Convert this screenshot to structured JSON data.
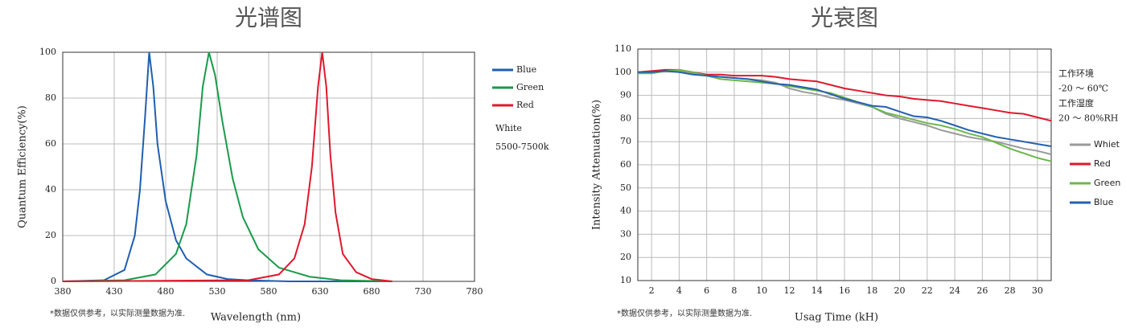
{
  "chart_data": [
    {
      "type": "line",
      "title": "光谱图",
      "x_label": "Wavelength  (nm)",
      "y_label": "Quantum  Efficiency(%)",
      "footnote": "*数据仅供参考，以实际测量数据为准.",
      "notes": [
        "White",
        "5500-7500k"
      ],
      "xlim": [
        380,
        780
      ],
      "xticks": [
        380,
        430,
        480,
        530,
        580,
        630,
        680,
        730,
        780
      ],
      "ylim": [
        0,
        100
      ],
      "yticks": [
        0,
        20,
        40,
        60,
        80,
        100
      ],
      "grid": true,
      "series": [
        {
          "name": "Blue",
          "color": "#1f5fb0",
          "x": [
            380,
            420,
            440,
            450,
            455,
            460,
            464,
            468,
            472,
            480,
            490,
            500,
            520,
            540,
            560,
            600,
            700
          ],
          "values": [
            0,
            0.5,
            5,
            20,
            40,
            72,
            100,
            85,
            60,
            35,
            18,
            10,
            3,
            1,
            0.5,
            0,
            0
          ]
        },
        {
          "name": "Green",
          "color": "#1a9a4a",
          "x": [
            380,
            440,
            470,
            490,
            500,
            510,
            516,
            522,
            528,
            535,
            545,
            555,
            570,
            590,
            620,
            650,
            700
          ],
          "values": [
            0,
            0.5,
            3,
            12,
            25,
            55,
            85,
            100,
            90,
            70,
            45,
            28,
            14,
            6,
            2,
            0.5,
            0
          ]
        },
        {
          "name": "Red",
          "color": "#e0182d",
          "x": [
            380,
            560,
            590,
            605,
            615,
            622,
            628,
            632,
            636,
            640,
            645,
            652,
            665,
            680,
            700
          ],
          "values": [
            0,
            0.5,
            3,
            10,
            25,
            50,
            85,
            100,
            85,
            55,
            30,
            12,
            4,
            1,
            0
          ]
        }
      ]
    },
    {
      "type": "line",
      "title": "光衰图",
      "x_label": "Usag Time (kH)",
      "y_label": "Intensity Attenuation(%)",
      "footnote": "*数据仅供参考，以实际测量数据为准.",
      "notes": [
        "工作环境",
        "-20 ～ 60℃",
        "工作湿度",
        "20 ～ 80%RH"
      ],
      "xlim": [
        1,
        31
      ],
      "xticks": [
        2,
        4,
        6,
        8,
        10,
        12,
        14,
        16,
        18,
        20,
        22,
        24,
        26,
        28,
        30
      ],
      "ylim": [
        10,
        110
      ],
      "yticks": [
        10,
        20,
        30,
        40,
        50,
        60,
        70,
        80,
        90,
        100,
        110
      ],
      "grid": true,
      "x": [
        1,
        2,
        3,
        4,
        5,
        6,
        7,
        8,
        9,
        10,
        11,
        12,
        13,
        14,
        15,
        16,
        17,
        18,
        19,
        20,
        21,
        22,
        23,
        24,
        25,
        26,
        27,
        28,
        29,
        30,
        31
      ],
      "series": [
        {
          "name": "Whiet",
          "color": "#9a9a9a",
          "values": [
            100,
            100,
            101,
            100.5,
            99.5,
            98.5,
            98,
            97.5,
            97,
            96.5,
            95.5,
            93,
            91.5,
            90.5,
            89,
            88,
            86.5,
            85,
            82,
            80,
            78.5,
            77,
            75,
            73.5,
            72,
            71,
            70,
            68.5,
            67,
            66,
            64.5
          ]
        },
        {
          "name": "Red",
          "color": "#e0182d",
          "values": [
            100,
            100.5,
            101,
            101,
            100,
            99,
            99,
            98.5,
            98.5,
            98.5,
            98,
            97,
            96.5,
            96,
            94.5,
            93,
            92,
            91,
            90,
            89.5,
            88.5,
            88,
            87.5,
            86.5,
            85.5,
            84.5,
            83.5,
            82.5,
            82,
            80.5,
            79
          ]
        },
        {
          "name": "Green",
          "color": "#6ab84a",
          "values": [
            99.5,
            99.5,
            100.5,
            101,
            100,
            98.5,
            97,
            96.5,
            96,
            95.5,
            95,
            94,
            93,
            92,
            91,
            89,
            87,
            85,
            82.5,
            81,
            79.5,
            78,
            77,
            75.5,
            73.5,
            72,
            69.5,
            67,
            65,
            63,
            61.5
          ]
        },
        {
          "name": "Blue",
          "color": "#2560b0",
          "values": [
            100,
            100,
            100.5,
            100,
            99,
            98.5,
            98,
            97.5,
            97,
            96,
            95,
            94.5,
            93.5,
            92.5,
            90.5,
            88.5,
            87,
            85.5,
            85,
            83,
            81,
            80.5,
            79,
            77,
            75,
            73.5,
            72,
            71,
            70,
            69,
            68
          ]
        }
      ]
    }
  ]
}
